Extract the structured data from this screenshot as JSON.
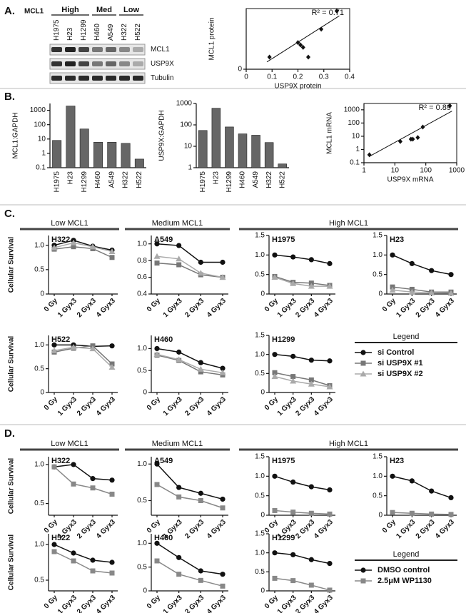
{
  "panel_labels": [
    "A.",
    "B.",
    "C.",
    "D."
  ],
  "blot": {
    "protein": "MCL1",
    "groups": [
      {
        "name": "High",
        "lanes": [
          "H1975",
          "H23",
          "H1299"
        ]
      },
      {
        "name": "Med",
        "lanes": [
          "H460",
          "A549"
        ]
      },
      {
        "name": "Low",
        "lanes": [
          "H322",
          "H522"
        ]
      }
    ],
    "rows": [
      "MCL1",
      "USP9X",
      "Tubulin"
    ]
  },
  "sections": [
    {
      "groups": [
        "Low MCL1",
        "Medium MCL1",
        "High MCL1"
      ],
      "legend_title": "Legend"
    },
    {
      "groups": [
        "Low MCL1",
        "Medium MCL1",
        "High MCL1"
      ],
      "legend_title": "Legend"
    }
  ],
  "chart_data": [
    {
      "type": "scatter",
      "annotation": "R² = 0.71",
      "xlabel": "USP9X protein",
      "ylabel": "MCL1 protein",
      "color": "#111",
      "x": [
        0.09,
        0.2,
        0.21,
        0.22,
        0.24,
        0.29,
        0.35
      ],
      "y": [
        0.1,
        0.22,
        0.2,
        0.18,
        0.1,
        0.33,
        0.48
      ],
      "xlim": [
        0,
        0.4
      ],
      "xticks": [
        0,
        0.1,
        0.2,
        0.3,
        0.4
      ],
      "ylim": [
        0,
        0.5
      ],
      "yticks": [
        0
      ],
      "trendline": {
        "x": [
          0.08,
          0.36
        ],
        "y": [
          0.06,
          0.44
        ]
      }
    },
    {
      "type": "bar",
      "ylabel": "MCL1:GAPDH",
      "color": "#666",
      "yscale": "log",
      "categories": [
        "H1975",
        "H23",
        "H1299",
        "H460",
        "A549",
        "H322",
        "H522"
      ],
      "values": [
        8,
        2000,
        50,
        6,
        6,
        5,
        0.4
      ],
      "ylim": [
        0.1,
        3000
      ],
      "yticks": [
        0.1,
        1,
        10,
        100,
        1000
      ]
    },
    {
      "type": "bar",
      "ylabel": "USP9X:GAPDH",
      "color": "#666",
      "yscale": "log",
      "categories": [
        "H1975",
        "H23",
        "H1299",
        "H460",
        "A549",
        "H322",
        "H522"
      ],
      "values": [
        55,
        600,
        80,
        38,
        33,
        15,
        1.5
      ],
      "ylim": [
        1,
        1000
      ],
      "yticks": [
        1,
        10,
        100,
        1000
      ]
    },
    {
      "type": "scatter",
      "annotation": "R² = 0.89",
      "xlabel": "USP9X mRNA",
      "ylabel": "MCL1 mRNA",
      "color": "#111",
      "xscale": "log",
      "yscale": "log",
      "x": [
        1.5,
        15,
        33,
        38,
        55,
        80,
        600
      ],
      "y": [
        0.4,
        4,
        6,
        6,
        8,
        50,
        2000
      ],
      "xlim": [
        1,
        1000
      ],
      "xticks": [
        1,
        10,
        100,
        1000
      ],
      "ylim": [
        0.1,
        3000
      ],
      "yticks": [
        0.1,
        1,
        10,
        100,
        1000
      ],
      "trendline": {
        "x": [
          1.5,
          700
        ],
        "y": [
          0.3,
          800
        ]
      }
    },
    {
      "type": "line",
      "title": "H322",
      "ylabel": "Cellular Survival",
      "categories": [
        "0 Gy",
        "1 Gyx3",
        "2 Gyx3",
        "4 Gyx3"
      ],
      "ylim": [
        0,
        1.2
      ],
      "yticks": [
        0,
        0.5,
        {
          "value": 1,
          "label": "1.0"
        }
      ],
      "series": [
        {
          "name": "si Control",
          "color": "#111",
          "marker": "circle",
          "values": [
            1.0,
            1.1,
            0.98,
            0.9
          ]
        },
        {
          "name": "si USP9X #1",
          "color": "#777",
          "marker": "square",
          "values": [
            0.92,
            0.97,
            0.93,
            0.75
          ]
        },
        {
          "name": "si USP9X #2",
          "color": "#aaa",
          "marker": "triangle",
          "values": [
            0.95,
            1.05,
            0.97,
            0.87
          ]
        }
      ]
    },
    {
      "type": "line",
      "title": "A549",
      "categories": [
        "0 Gy",
        "1 Gyx3",
        "2 Gyx3",
        "4 Gyx3"
      ],
      "ylim": [
        0.4,
        1.1
      ],
      "yticks": [
        0.4,
        0.6,
        0.8,
        {
          "value": 1,
          "label": "1.0"
        }
      ],
      "series": [
        {
          "name": "si Control",
          "color": "#111",
          "marker": "circle",
          "values": [
            1.0,
            0.98,
            0.78,
            0.78
          ]
        },
        {
          "name": "si USP9X #1",
          "color": "#777",
          "marker": "square",
          "values": [
            0.77,
            0.75,
            0.63,
            0.6
          ]
        },
        {
          "name": "si USP9X #2",
          "color": "#aaa",
          "marker": "triangle",
          "values": [
            0.85,
            0.82,
            0.65,
            0.6
          ]
        }
      ]
    },
    {
      "type": "line",
      "title": "H1975",
      "categories": [
        "0 Gy",
        "1 Gyx3",
        "2 Gyx3",
        "4 Gyx3"
      ],
      "ylim": [
        0,
        1.5
      ],
      "yticks": [
        0,
        0.5,
        {
          "value": 1,
          "label": "1.0"
        },
        1.5
      ],
      "series": [
        {
          "name": "si Control",
          "color": "#111",
          "marker": "circle",
          "values": [
            1.0,
            0.95,
            0.88,
            0.78
          ]
        },
        {
          "name": "si USP9X #1",
          "color": "#777",
          "marker": "square",
          "values": [
            0.45,
            0.3,
            0.28,
            0.22
          ]
        },
        {
          "name": "si USP9X #2",
          "color": "#aaa",
          "marker": "triangle",
          "values": [
            0.43,
            0.27,
            0.2,
            0.2
          ]
        }
      ]
    },
    {
      "type": "line",
      "title": "H23",
      "categories": [
        "0 Gy",
        "1 Gyx3",
        "2 Gyx3",
        "4 Gyx3"
      ],
      "ylim": [
        0,
        1.5
      ],
      "yticks": [
        0,
        0.5,
        {
          "value": 1,
          "label": "1.0"
        },
        1.5
      ],
      "series": [
        {
          "name": "si Control",
          "color": "#111",
          "marker": "circle",
          "values": [
            1.0,
            0.78,
            0.6,
            0.5
          ]
        },
        {
          "name": "si USP9X #1",
          "color": "#777",
          "marker": "square",
          "values": [
            0.18,
            0.12,
            0.05,
            0.05
          ]
        },
        {
          "name": "si USP9X #2",
          "color": "#aaa",
          "marker": "triangle",
          "values": [
            0.1,
            0.05,
            0.03,
            0.02
          ]
        }
      ]
    },
    {
      "type": "line",
      "title": "H522",
      "ylabel": "Cellular Survival",
      "categories": [
        "0 Gy",
        "1 Gyx3",
        "2 Gyx3",
        "4 Gyx3"
      ],
      "ylim": [
        0,
        1.2
      ],
      "yticks": [
        0,
        0.5,
        {
          "value": 1,
          "label": "1.0"
        }
      ],
      "series": [
        {
          "name": "si Control",
          "color": "#111",
          "marker": "circle",
          "values": [
            1.0,
            1.0,
            0.97,
            0.98
          ]
        },
        {
          "name": "si USP9X #1",
          "color": "#777",
          "marker": "square",
          "values": [
            0.85,
            0.93,
            0.98,
            0.6
          ]
        },
        {
          "name": "si USP9X #2",
          "color": "#aaa",
          "marker": "triangle",
          "values": [
            0.88,
            0.95,
            0.92,
            0.53
          ]
        }
      ]
    },
    {
      "type": "line",
      "title": "H460",
      "categories": [
        "0 Gy",
        "1 Gyx3",
        "2 Gyx3",
        "4 Gyx3"
      ],
      "ylim": [
        0,
        1.3
      ],
      "yticks": [
        0,
        0.5,
        {
          "value": 1,
          "label": "1.0"
        }
      ],
      "series": [
        {
          "name": "si Control",
          "color": "#111",
          "marker": "circle",
          "values": [
            1.0,
            0.92,
            0.68,
            0.55
          ]
        },
        {
          "name": "si USP9X #1",
          "color": "#777",
          "marker": "square",
          "values": [
            0.85,
            0.73,
            0.47,
            0.4
          ]
        },
        {
          "name": "si USP9X #2",
          "color": "#aaa",
          "marker": "triangle",
          "values": [
            0.87,
            0.75,
            0.53,
            0.45
          ]
        }
      ]
    },
    {
      "type": "line",
      "title": "H1299",
      "categories": [
        "0 Gy",
        "1 Gyx3",
        "2 Gyx3",
        "4 Gyx3"
      ],
      "ylim": [
        0,
        1.5
      ],
      "yticks": [
        0,
        0.5,
        {
          "value": 1,
          "label": "1.0"
        },
        1.5
      ],
      "series": [
        {
          "name": "si Control",
          "color": "#111",
          "marker": "circle",
          "values": [
            1.0,
            0.95,
            0.85,
            0.83
          ]
        },
        {
          "name": "si USP9X #1",
          "color": "#777",
          "marker": "square",
          "values": [
            0.52,
            0.42,
            0.33,
            0.18
          ]
        },
        {
          "name": "si USP9X #2",
          "color": "#aaa",
          "marker": "triangle",
          "values": [
            0.42,
            0.3,
            0.22,
            0.15
          ]
        }
      ]
    },
    {
      "type": "line",
      "title": "H322",
      "ylabel": "Cellular Survival",
      "categories": [
        "0 Gy",
        "1 Gyx3",
        "2 Gyx3",
        "4 Gyx3"
      ],
      "ylim": [
        0.35,
        1.1
      ],
      "yticks": [
        0.5,
        {
          "value": 1,
          "label": "1.0"
        }
      ],
      "series": [
        {
          "name": "DMSO control",
          "color": "#111",
          "marker": "circle",
          "values": [
            0.97,
            1.0,
            0.82,
            0.8
          ]
        },
        {
          "name": "2.5μM WP1130",
          "color": "#888",
          "marker": "square",
          "values": [
            0.97,
            0.75,
            0.7,
            0.62
          ]
        }
      ]
    },
    {
      "type": "line",
      "title": "A549",
      "categories": [
        "0 Gy",
        "1 Gyx3",
        "2 Gyx3",
        "4 Gyx3"
      ],
      "ylim": [
        0.3,
        1.1
      ],
      "yticks": [
        0.5,
        {
          "value": 1,
          "label": "1.0"
        }
      ],
      "series": [
        {
          "name": "DMSO control",
          "color": "#111",
          "marker": "circle",
          "values": [
            1.0,
            0.68,
            0.6,
            0.52
          ]
        },
        {
          "name": "2.5μM WP1130",
          "color": "#888",
          "marker": "square",
          "values": [
            0.72,
            0.55,
            0.5,
            0.4
          ]
        }
      ]
    },
    {
      "type": "line",
      "title": "H1975",
      "categories": [
        "0 Gy",
        "1 Gyx3",
        "2 Gyx3",
        "4 Gyx3"
      ],
      "ylim": [
        0,
        1.5
      ],
      "yticks": [
        0,
        0.5,
        {
          "value": 1,
          "label": "1.0"
        },
        1.5
      ],
      "series": [
        {
          "name": "DMSO control",
          "color": "#111",
          "marker": "circle",
          "values": [
            1.0,
            0.85,
            0.73,
            0.65
          ]
        },
        {
          "name": "2.5μM WP1130",
          "color": "#888",
          "marker": "square",
          "values": [
            0.12,
            0.08,
            0.05,
            0.03
          ]
        }
      ]
    },
    {
      "type": "line",
      "title": "H23",
      "categories": [
        "0 Gy",
        "1 Gyx3",
        "2 Gyx3",
        "4 Gyx3"
      ],
      "ylim": [
        0,
        1.5
      ],
      "yticks": [
        0,
        0.5,
        {
          "value": 1,
          "label": "1.0"
        },
        1.5
      ],
      "series": [
        {
          "name": "DMSO control",
          "color": "#111",
          "marker": "circle",
          "values": [
            1.0,
            0.88,
            0.62,
            0.45
          ]
        },
        {
          "name": "2.5μM WP1130",
          "color": "#888",
          "marker": "square",
          "values": [
            0.07,
            0.05,
            0.03,
            0.02
          ]
        }
      ]
    },
    {
      "type": "line",
      "title": "H522",
      "ylabel": "Cellular Survival",
      "categories": [
        "0 Gy",
        "1 Gyx3",
        "2 Gyx3",
        "4 Gyx3"
      ],
      "ylim": [
        0.35,
        1.15
      ],
      "yticks": [
        0.5,
        {
          "value": 1,
          "label": "1.0"
        }
      ],
      "series": [
        {
          "name": "DMSO control",
          "color": "#111",
          "marker": "circle",
          "values": [
            1.0,
            0.88,
            0.78,
            0.75
          ]
        },
        {
          "name": "2.5μM WP1130",
          "color": "#888",
          "marker": "square",
          "values": [
            0.9,
            0.77,
            0.63,
            0.6
          ]
        }
      ]
    },
    {
      "type": "line",
      "title": "H460",
      "categories": [
        "0 Gy",
        "1 Gyx3",
        "2 Gyx3",
        "4 Gyx3"
      ],
      "ylim": [
        0,
        1.2
      ],
      "yticks": [
        0,
        0.5,
        {
          "value": 1,
          "label": "1.0"
        }
      ],
      "series": [
        {
          "name": "DMSO control",
          "color": "#111",
          "marker": "circle",
          "values": [
            1.0,
            0.7,
            0.42,
            0.35
          ]
        },
        {
          "name": "2.5μM WP1130",
          "color": "#888",
          "marker": "square",
          "values": [
            0.63,
            0.35,
            0.22,
            0.1
          ]
        }
      ]
    },
    {
      "type": "line",
      "title": "H1299",
      "categories": [
        "0 Gy",
        "1 Gyx3",
        "2 Gyx3",
        "4 Gyx3"
      ],
      "ylim": [
        0,
        1.5
      ],
      "yticks": [
        0,
        0.5,
        {
          "value": 1,
          "label": "1.0"
        },
        1.5
      ],
      "series": [
        {
          "name": "DMSO control",
          "color": "#111",
          "marker": "circle",
          "values": [
            1.0,
            0.95,
            0.82,
            0.72
          ]
        },
        {
          "name": "2.5μM WP1130",
          "color": "#888",
          "marker": "square",
          "values": [
            0.33,
            0.27,
            0.15,
            0.02
          ]
        }
      ]
    }
  ]
}
